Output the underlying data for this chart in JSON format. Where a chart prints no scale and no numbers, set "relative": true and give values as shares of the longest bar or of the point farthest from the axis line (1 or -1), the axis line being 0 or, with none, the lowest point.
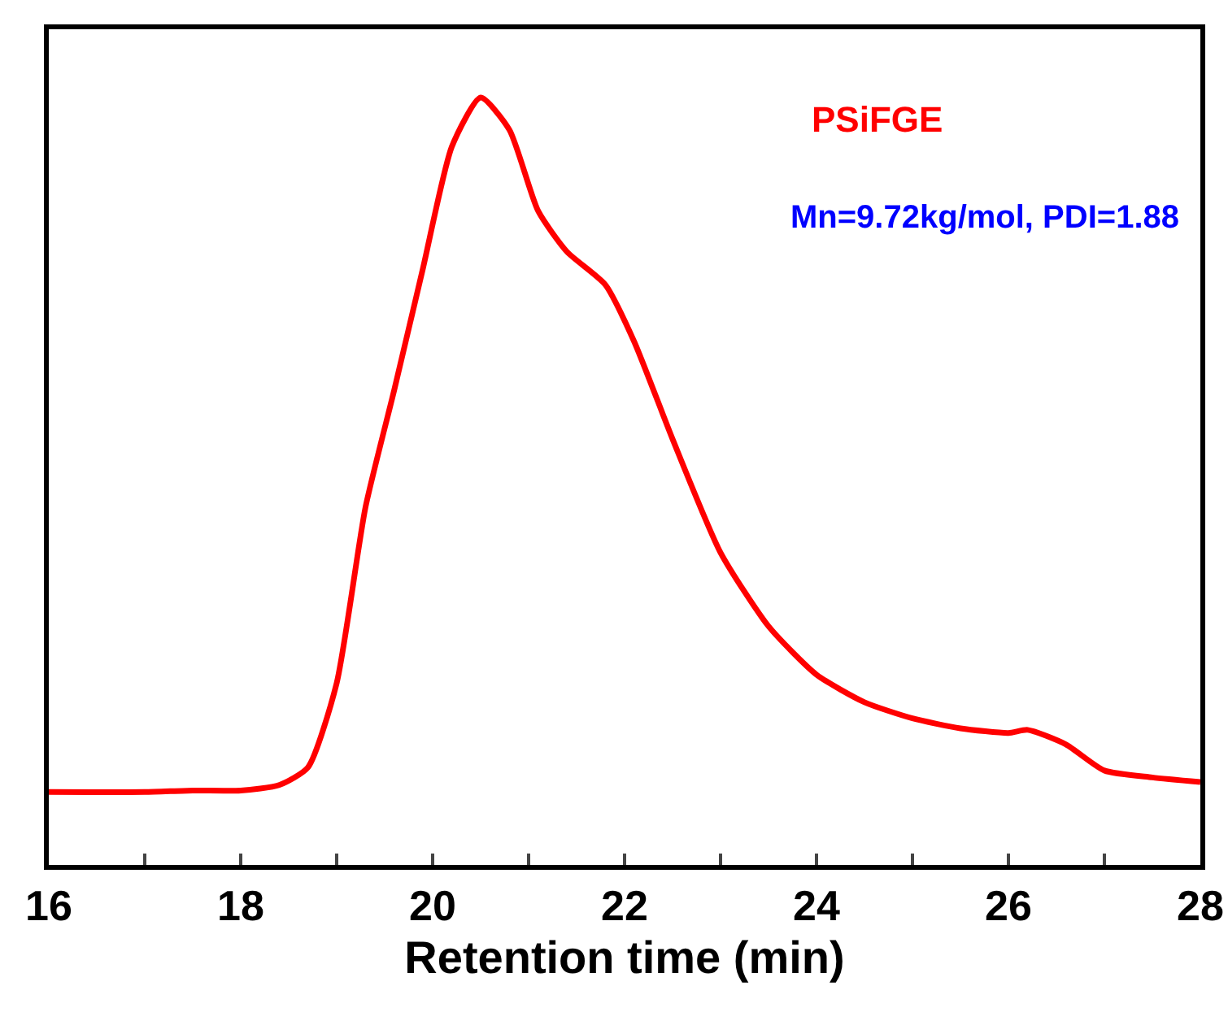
{
  "chart_data": {
    "type": "line",
    "xlabel": "Retention time (min)",
    "relative": true,
    "legend": false,
    "grid": false,
    "xlim": [
      16,
      28
    ],
    "xticks": [
      16,
      {
        "value": 17,
        "label": null
      },
      18,
      {
        "value": 19,
        "label": null
      },
      20,
      {
        "value": 21,
        "label": null
      },
      22,
      {
        "value": 23,
        "label": null
      },
      24,
      {
        "value": 25,
        "label": null
      },
      26,
      {
        "value": 27,
        "label": null
      },
      28
    ],
    "annotations": [
      "Mn=9.72kg/mol, PDI=1.88"
    ],
    "series": [
      {
        "name": "PSiFGE",
        "color": "#ff0000",
        "x": [
          16,
          17,
          17.5,
          18,
          18.4,
          18.7,
          19.0,
          19.3,
          19.6,
          19.9,
          20.2,
          20.5,
          20.8,
          21.1,
          21.4,
          21.8,
          22.1,
          22.5,
          23.0,
          23.5,
          24.0,
          24.5,
          25.0,
          25.5,
          26.0,
          26.2,
          26.6,
          27.0,
          27.5,
          28.0
        ],
        "values": [
          0.095,
          0.095,
          0.097,
          0.097,
          0.104,
          0.127,
          0.237,
          0.466,
          0.619,
          0.778,
          0.936,
          1,
          0.958,
          0.852,
          0.799,
          0.756,
          0.682,
          0.555,
          0.407,
          0.311,
          0.248,
          0.212,
          0.191,
          0.178,
          0.172,
          0.176,
          0.157,
          0.123,
          0.114,
          0.108
        ]
      }
    ]
  }
}
